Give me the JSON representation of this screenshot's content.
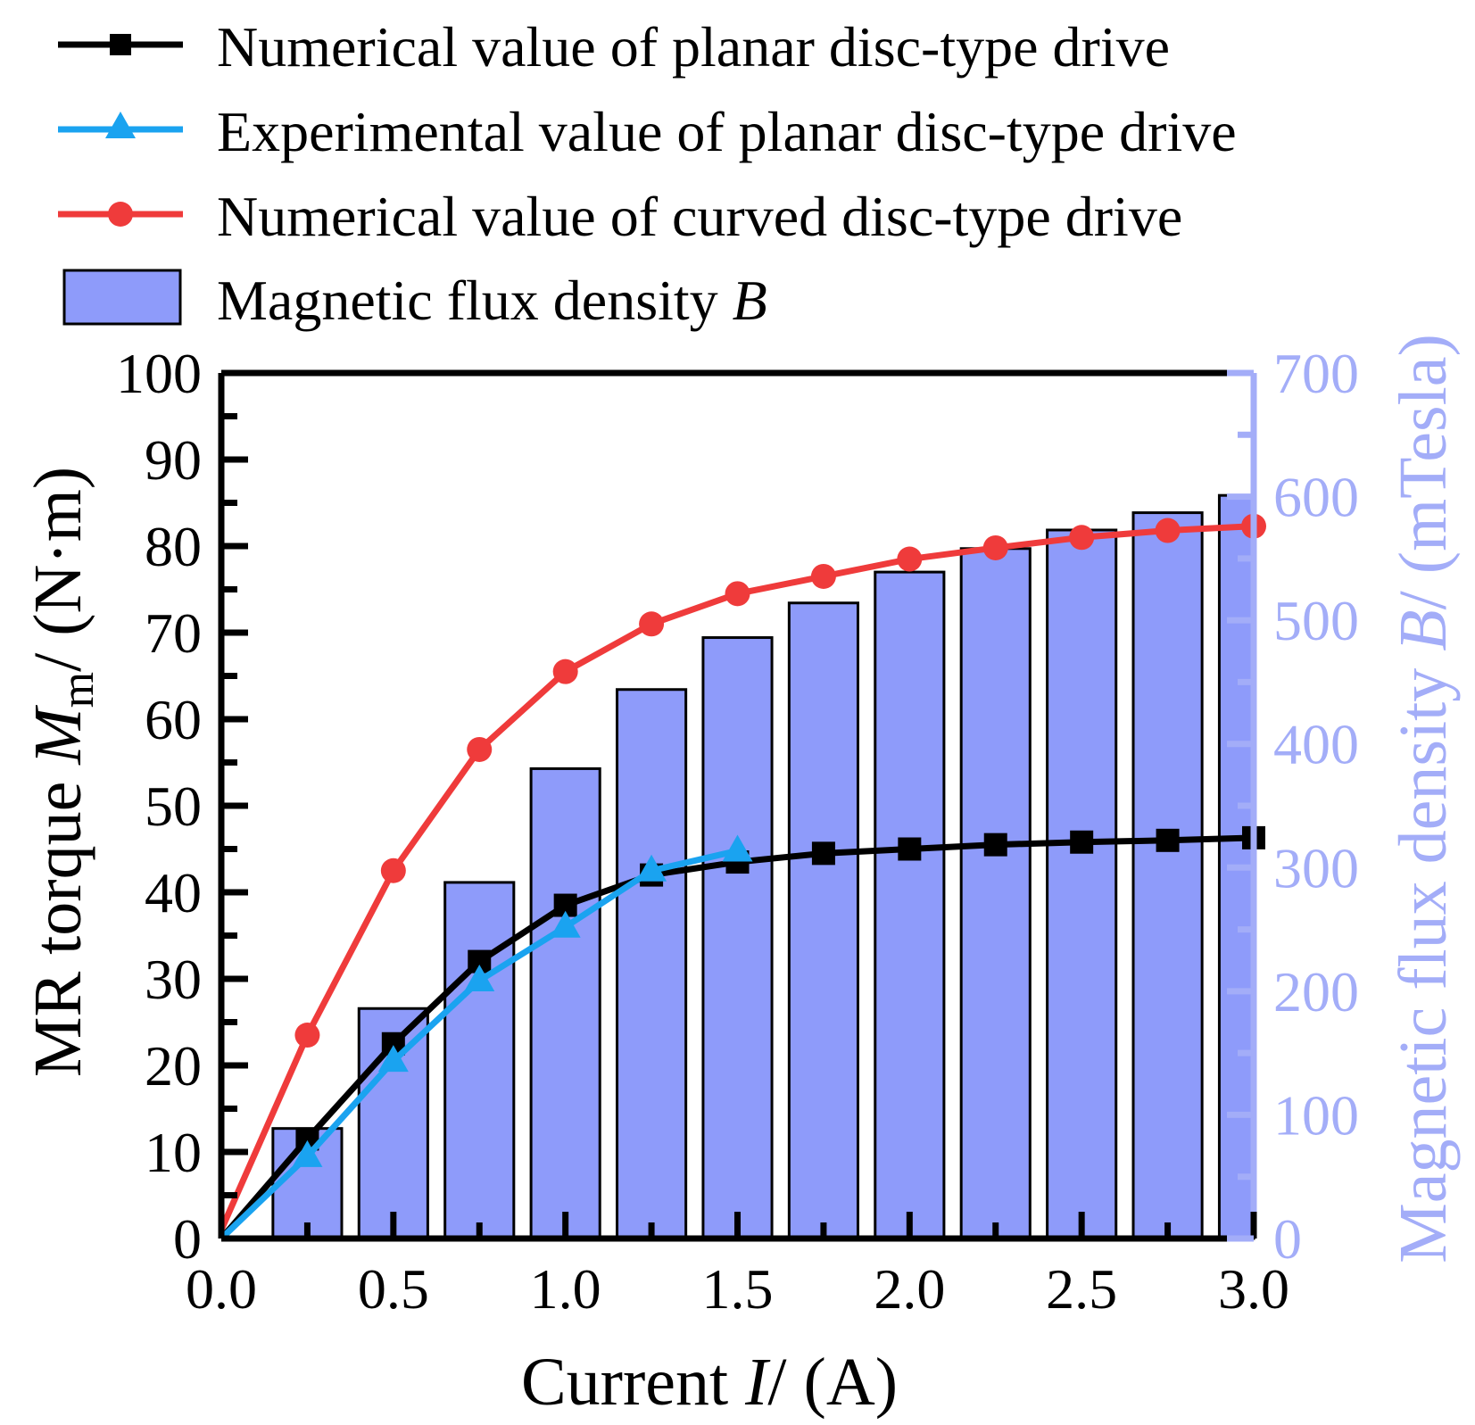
{
  "chart_data": {
    "type": "bar+line",
    "xlabel_prefix": "Current ",
    "xlabel_italic": "I",
    "xlabel_suffix": "/ (A)",
    "ylabel_prefix": "MR torque ",
    "ylabel_italic": "M",
    "ylabel_sub": "m",
    "ylabel_suffix": "/ (N·m)",
    "y2label_prefix": "Magnetic flux density ",
    "y2label_italic": "B",
    "y2label_suffix": "/ (mTesla)",
    "xlim": [
      0,
      3
    ],
    "ylim": [
      0,
      100
    ],
    "y2lim": [
      0,
      700
    ],
    "x_ticks": [
      "0.0",
      "0.5",
      "1.0",
      "1.5",
      "2.0",
      "2.5",
      "3.0"
    ],
    "y_ticks": [
      "0",
      "10",
      "20",
      "30",
      "40",
      "50",
      "60",
      "70",
      "80",
      "90",
      "100"
    ],
    "y2_ticks": [
      "0",
      "100",
      "200",
      "300",
      "400",
      "500",
      "600",
      "700"
    ],
    "colors": {
      "numerical_planar": "#000000",
      "experimental_planar": "#1aa3f0",
      "numerical_curved": "#ef3b3b",
      "bars": "#8e9bfa",
      "right_axis": "#a3adf8"
    },
    "series": [
      {
        "name": "Numerical value of planar disc-type drive",
        "marker": "square",
        "x": [
          0,
          0.25,
          0.5,
          0.75,
          1.0,
          1.25,
          1.5,
          1.75,
          2.0,
          2.25,
          2.5,
          2.75,
          3.0
        ],
        "values": [
          0,
          11.5,
          22.5,
          32,
          38.5,
          42,
          43.5,
          44.5,
          45,
          45.5,
          45.8,
          46,
          46.3
        ]
      },
      {
        "name": "Experimental value of planar disc-type drive",
        "marker": "triangle",
        "x": [
          0,
          0.25,
          0.5,
          0.75,
          1.0,
          1.25,
          1.5
        ],
        "values": [
          0,
          9.5,
          20.5,
          29.8,
          36,
          42.5,
          44.8
        ]
      },
      {
        "name": "Numerical value of curved disc-type drive",
        "marker": "circle",
        "x": [
          0,
          0.25,
          0.5,
          0.75,
          1.0,
          1.25,
          1.5,
          1.75,
          2.0,
          2.25,
          2.5,
          2.75,
          3.0
        ],
        "values": [
          1,
          23.5,
          42.5,
          56.5,
          65.5,
          71,
          74.5,
          76.5,
          78.5,
          79.8,
          81,
          81.8,
          82.3
        ]
      }
    ],
    "bars": {
      "name_prefix": "Magnetic flux density ",
      "name_italic": "B",
      "x": [
        0.25,
        0.5,
        0.75,
        1.0,
        1.25,
        1.5,
        1.75,
        2.0,
        2.25,
        2.5,
        2.75,
        3.0
      ],
      "values": [
        89,
        186,
        288,
        380,
        444,
        486,
        514,
        539,
        558,
        573,
        587,
        601
      ]
    }
  }
}
